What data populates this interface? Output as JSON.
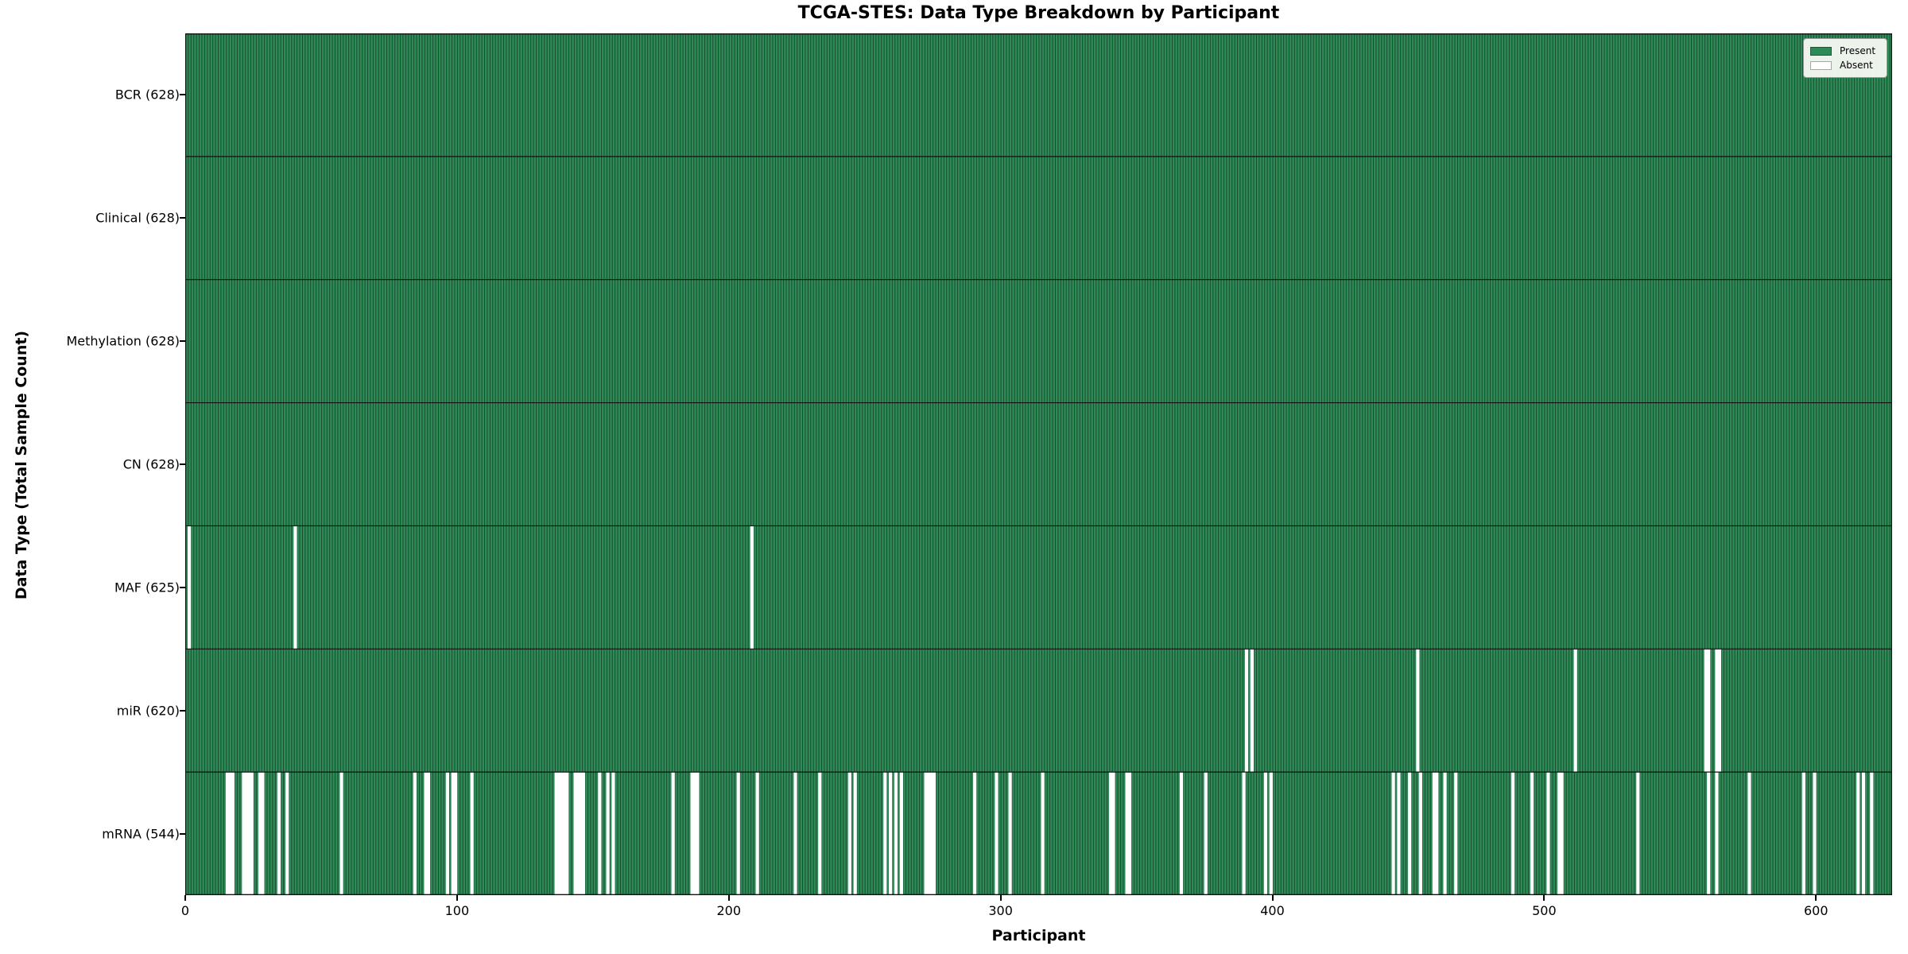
{
  "chart_data": {
    "type": "heatmap",
    "title": "TCGA-STES: Data Type Breakdown by Participant",
    "xlabel": "Participant",
    "ylabel": "Data Type (Total Sample Count)",
    "n_participants": 628,
    "xlim": [
      0,
      628
    ],
    "x_ticks": [
      0,
      100,
      200,
      300,
      400,
      500,
      600
    ],
    "grid": false,
    "legend": {
      "position": "upper right",
      "entries": [
        {
          "label": "Present",
          "color": "#2e8b57"
        },
        {
          "label": "Absent",
          "color": "#ffffff"
        }
      ]
    },
    "rows": [
      {
        "name": "BCR",
        "label": "BCR (628)",
        "present_count": 628,
        "absent_participants": []
      },
      {
        "name": "Clinical",
        "label": "Clinical (628)",
        "present_count": 628,
        "absent_participants": []
      },
      {
        "name": "Methylation",
        "label": "Methylation (628)",
        "present_count": 628,
        "absent_participants": []
      },
      {
        "name": "CN",
        "label": "CN (628)",
        "present_count": 628,
        "absent_participants": []
      },
      {
        "name": "MAF",
        "label": "MAF (625)",
        "present_count": 625,
        "absent_participants": [
          1,
          40,
          208
        ]
      },
      {
        "name": "miR",
        "label": "miR (620)",
        "present_count": 620,
        "absent_participants": [
          390,
          392,
          453,
          511,
          559,
          560,
          563,
          564
        ]
      },
      {
        "name": "mRNA",
        "label": "mRNA (544)",
        "present_count": 544,
        "absent_participants": [
          15,
          16,
          17,
          21,
          22,
          23,
          24,
          27,
          28,
          34,
          37,
          57,
          84,
          88,
          89,
          96,
          98,
          99,
          105,
          136,
          137,
          138,
          139,
          140,
          143,
          144,
          145,
          146,
          152,
          155,
          157,
          179,
          186,
          187,
          188,
          203,
          210,
          224,
          233,
          244,
          246,
          257,
          259,
          261,
          263,
          272,
          273,
          274,
          275,
          290,
          298,
          303,
          315,
          340,
          341,
          346,
          347,
          366,
          375,
          389,
          397,
          399,
          444,
          446,
          450,
          454,
          459,
          460,
          463,
          467,
          488,
          495,
          501,
          505,
          506,
          534,
          560,
          563,
          575,
          595,
          599,
          615,
          617,
          620
        ]
      }
    ]
  },
  "colors": {
    "present": "#2e8b57",
    "absent": "#ffffff",
    "bar_edge": "rgba(0,0,0,0.5)",
    "row_border": "#111111",
    "background": "#ffffff",
    "legend_bg": "#f8faf4",
    "legend_border": "#9a9a9a",
    "text": "#000000"
  }
}
